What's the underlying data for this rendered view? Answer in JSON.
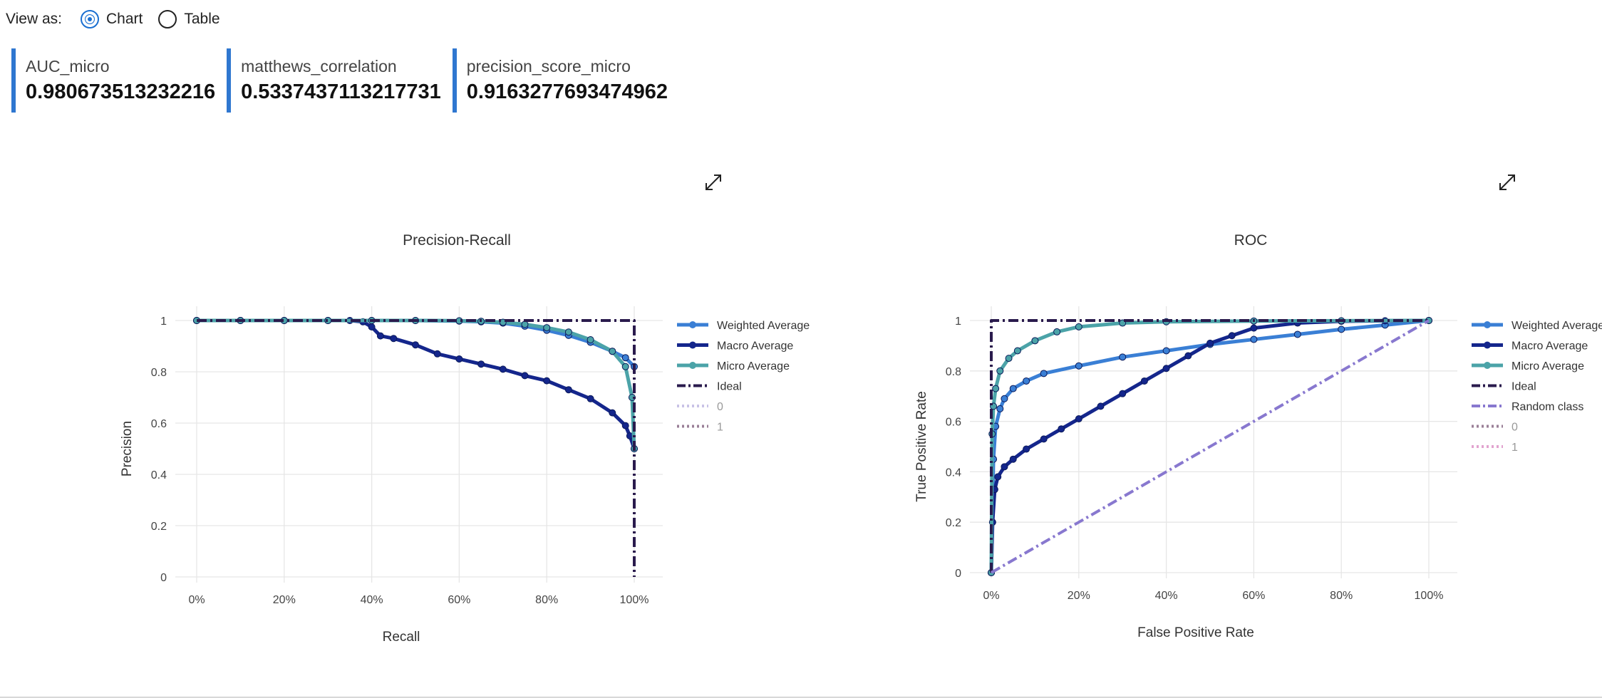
{
  "view_toggle": {
    "label": "View as:",
    "options": [
      {
        "label": "Chart",
        "selected": true
      },
      {
        "label": "Table",
        "selected": false
      }
    ]
  },
  "metrics": [
    {
      "name": "AUC_micro",
      "value": "0.980673513232216"
    },
    {
      "name": "matthews_correlation",
      "value": "0.5337437113217731"
    },
    {
      "name": "precision_score_micro",
      "value": "0.9163277693474962"
    }
  ],
  "icons": {
    "expand": "expand-icon"
  },
  "chart_data": [
    {
      "type": "line",
      "title": "Precision-Recall",
      "xlabel": "Recall",
      "ylabel": "Precision",
      "xlim": [
        0,
        1
      ],
      "ylim": [
        0,
        1
      ],
      "x_ticks": [
        "0%",
        "20%",
        "40%",
        "60%",
        "80%",
        "100%"
      ],
      "y_ticks": [
        "0",
        "0.2",
        "0.4",
        "0.6",
        "0.8",
        "1"
      ],
      "grid": true,
      "legend_position": "right",
      "series": [
        {
          "name": "Weighted Average",
          "color": "#3a7fd5",
          "style": "line-markers",
          "x": [
            0,
            0.1,
            0.2,
            0.3,
            0.4,
            0.5,
            0.6,
            0.65,
            0.7,
            0.75,
            0.8,
            0.85,
            0.9,
            0.95,
            0.98,
            1.0
          ],
          "y": [
            1,
            1,
            1,
            1,
            1,
            1,
            0.998,
            0.995,
            0.99,
            0.978,
            0.962,
            0.942,
            0.915,
            0.88,
            0.855,
            0.82
          ]
        },
        {
          "name": "Macro Average",
          "color": "#14268c",
          "style": "line-markers",
          "x": [
            0,
            0.1,
            0.2,
            0.3,
            0.35,
            0.38,
            0.4,
            0.42,
            0.45,
            0.5,
            0.55,
            0.6,
            0.65,
            0.7,
            0.75,
            0.8,
            0.85,
            0.9,
            0.95,
            0.98,
            0.99,
            1.0
          ],
          "y": [
            1,
            1,
            1,
            1,
            1,
            0.995,
            0.975,
            0.94,
            0.93,
            0.905,
            0.87,
            0.85,
            0.83,
            0.81,
            0.785,
            0.765,
            0.73,
            0.695,
            0.64,
            0.59,
            0.55,
            0.5
          ]
        },
        {
          "name": "Micro Average",
          "color": "#4ba3a8",
          "style": "line-markers",
          "x": [
            0,
            0.1,
            0.2,
            0.3,
            0.4,
            0.5,
            0.6,
            0.65,
            0.7,
            0.75,
            0.8,
            0.85,
            0.9,
            0.95,
            0.98,
            0.995,
            1.0
          ],
          "y": [
            1,
            1,
            1,
            1,
            1,
            1,
            0.999,
            0.997,
            0.993,
            0.985,
            0.972,
            0.955,
            0.925,
            0.88,
            0.82,
            0.7,
            0.5
          ]
        },
        {
          "name": "Ideal",
          "color": "#2a1b4d",
          "style": "dashdot",
          "x": [
            0,
            1,
            1
          ],
          "y": [
            1,
            1,
            0
          ]
        },
        {
          "name": "0",
          "color": "#c9c2e6",
          "style": "dot",
          "x": [],
          "y": []
        },
        {
          "name": "1",
          "color": "#9a7f97",
          "style": "dot",
          "x": [],
          "y": []
        }
      ]
    },
    {
      "type": "line",
      "title": "ROC",
      "xlabel": "False Positive Rate",
      "ylabel": "True Positive Rate",
      "xlim": [
        0,
        1
      ],
      "ylim": [
        0,
        1
      ],
      "x_ticks": [
        "0%",
        "20%",
        "40%",
        "60%",
        "80%",
        "100%"
      ],
      "y_ticks": [
        "0",
        "0.2",
        "0.4",
        "0.6",
        "0.8",
        "1"
      ],
      "grid": true,
      "legend_position": "right",
      "series": [
        {
          "name": "Weighted Average",
          "color": "#3a7fd5",
          "style": "line-markers",
          "x": [
            0,
            0.005,
            0.01,
            0.02,
            0.03,
            0.05,
            0.08,
            0.12,
            0.2,
            0.3,
            0.4,
            0.5,
            0.6,
            0.7,
            0.8,
            0.9,
            1.0
          ],
          "y": [
            0,
            0.45,
            0.58,
            0.65,
            0.69,
            0.73,
            0.76,
            0.79,
            0.82,
            0.855,
            0.88,
            0.905,
            0.925,
            0.945,
            0.965,
            0.982,
            1.0
          ]
        },
        {
          "name": "Macro Average",
          "color": "#14268c",
          "style": "line-markers",
          "x": [
            0,
            0.003,
            0.008,
            0.015,
            0.03,
            0.05,
            0.08,
            0.12,
            0.16,
            0.2,
            0.25,
            0.3,
            0.35,
            0.4,
            0.45,
            0.5,
            0.55,
            0.6,
            0.7,
            0.8,
            0.9,
            1.0
          ],
          "y": [
            0,
            0.2,
            0.33,
            0.38,
            0.42,
            0.45,
            0.49,
            0.53,
            0.57,
            0.61,
            0.66,
            0.71,
            0.76,
            0.81,
            0.86,
            0.91,
            0.94,
            0.97,
            0.99,
            0.997,
            0.999,
            1.0
          ]
        },
        {
          "name": "Micro Average",
          "color": "#4ba3a8",
          "style": "line-markers",
          "x": [
            0,
            0.002,
            0.005,
            0.01,
            0.02,
            0.04,
            0.06,
            0.1,
            0.15,
            0.2,
            0.3,
            0.4,
            0.6,
            0.8,
            1.0
          ],
          "y": [
            0,
            0.55,
            0.66,
            0.73,
            0.8,
            0.85,
            0.88,
            0.92,
            0.955,
            0.975,
            0.99,
            0.995,
            0.998,
            0.999,
            1.0
          ]
        },
        {
          "name": "Ideal",
          "color": "#2a1b4d",
          "style": "dashdot",
          "x": [
            0,
            0,
            1
          ],
          "y": [
            0,
            1,
            1
          ]
        },
        {
          "name": "Random class",
          "color": "#8878cf",
          "style": "dashdot",
          "x": [
            0,
            1
          ],
          "y": [
            0,
            1
          ]
        },
        {
          "name": "0",
          "color": "#9a7f97",
          "style": "dot",
          "x": [],
          "y": []
        },
        {
          "name": "1",
          "color": "#e2a3cf",
          "style": "dot",
          "x": [],
          "y": []
        }
      ]
    }
  ]
}
